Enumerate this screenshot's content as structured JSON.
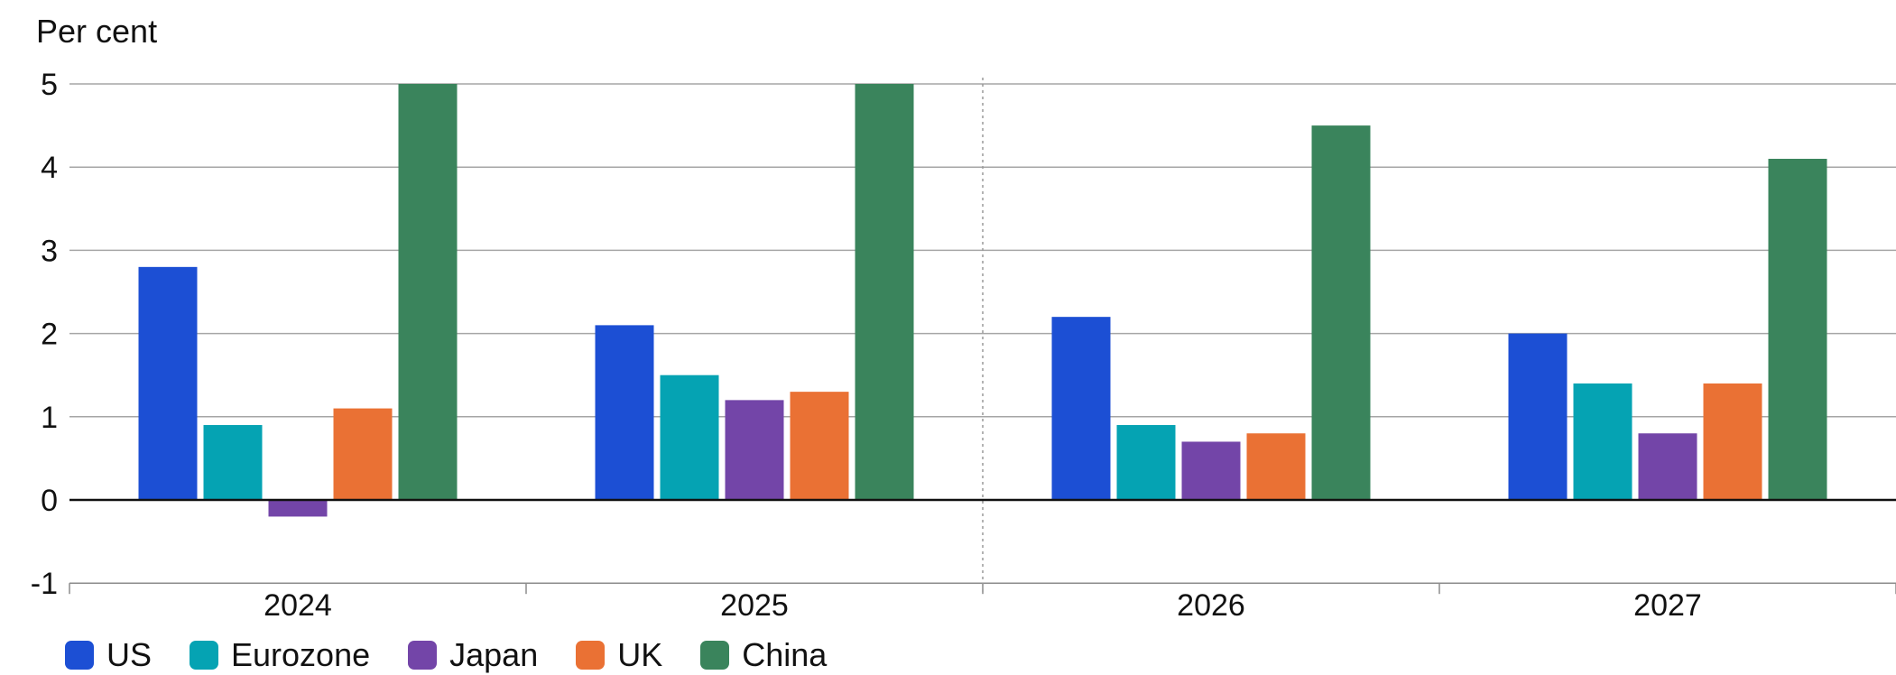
{
  "chart_data": {
    "type": "bar",
    "title": "",
    "ylabel": "Per cent",
    "xlabel": "",
    "ylim": [
      -1,
      5
    ],
    "yticks": [
      "-1",
      "0",
      "1",
      "2",
      "3",
      "4",
      "5"
    ],
    "categories": [
      "2024",
      "2025",
      "2026",
      "2027"
    ],
    "series": [
      {
        "name": "US",
        "color": "#1c4fd4",
        "values": [
          2.8,
          2.1,
          2.2,
          2.0
        ]
      },
      {
        "name": "Eurozone",
        "color": "#05a3b3",
        "values": [
          0.9,
          1.5,
          0.9,
          1.4
        ]
      },
      {
        "name": "Japan",
        "color": "#7345a8",
        "values": [
          -0.2,
          1.2,
          0.7,
          0.8
        ]
      },
      {
        "name": "UK",
        "color": "#ea7134",
        "values": [
          1.1,
          1.3,
          0.8,
          1.4
        ]
      },
      {
        "name": "China",
        "color": "#3a845c",
        "values": [
          5.0,
          5.0,
          4.5,
          4.1
        ]
      }
    ],
    "grid": true,
    "legend": "bottom-left",
    "forecast_divider_before": "2026"
  }
}
